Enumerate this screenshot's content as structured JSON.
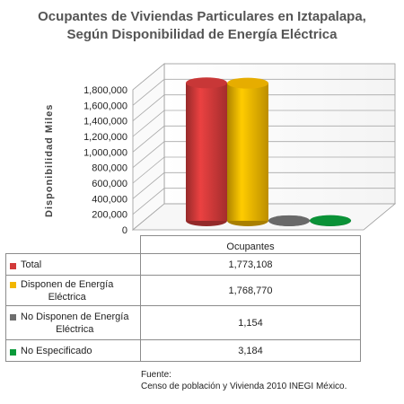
{
  "chart_data": {
    "type": "bar",
    "title": "Ocupantes de Viviendas Particulares en Iztapalapa, Según Disponibilidad de Energía Eléctrica",
    "title_lines": [
      "Ocupantes de Viviendas Particulares en Iztapalapa,",
      "Según Disponibilidad de Energía Eléctrica"
    ],
    "ylabel": "Disponibilidad   Miles",
    "xlabel": "",
    "categories": [
      "Ocupantes"
    ],
    "series": [
      {
        "name": "Total",
        "values": [
          1773108
        ],
        "value_text": "1,773,108",
        "color": "#d23a3a"
      },
      {
        "name": "Disponen de Energía Eléctrica",
        "name_lines": [
          "Disponen de Energía",
          "Eléctrica"
        ],
        "values": [
          1768770
        ],
        "value_text": "1,768,770",
        "color": "#f2b600"
      },
      {
        "name": "No Disponen de Energía Eléctrica",
        "name_lines": [
          "No Disponen de Energía",
          "Eléctrica"
        ],
        "values": [
          1154
        ],
        "value_text": "1,154",
        "color": "#6e6e6e"
      },
      {
        "name": "No Especificado",
        "values": [
          3184
        ],
        "value_text": "3,184",
        "color": "#0a9a3a"
      }
    ],
    "ylim": [
      0,
      1800000
    ],
    "yticks": [
      0,
      200000,
      400000,
      600000,
      800000,
      1000000,
      1200000,
      1400000,
      1600000,
      1800000
    ],
    "ytick_labels": [
      "0",
      "200,000",
      "400,000",
      "600,000",
      "800,000",
      "1,000,000",
      "1,200,000",
      "1,400,000",
      "1,600,000",
      "1,800,000"
    ],
    "grid": true,
    "legend": "table-below",
    "style": "3d-cylinder"
  },
  "table": {
    "category_header": "Ocupantes"
  },
  "source": {
    "line1": "Fuente:",
    "line2": "Censo de población y Vivienda 2010 INEGI México."
  }
}
